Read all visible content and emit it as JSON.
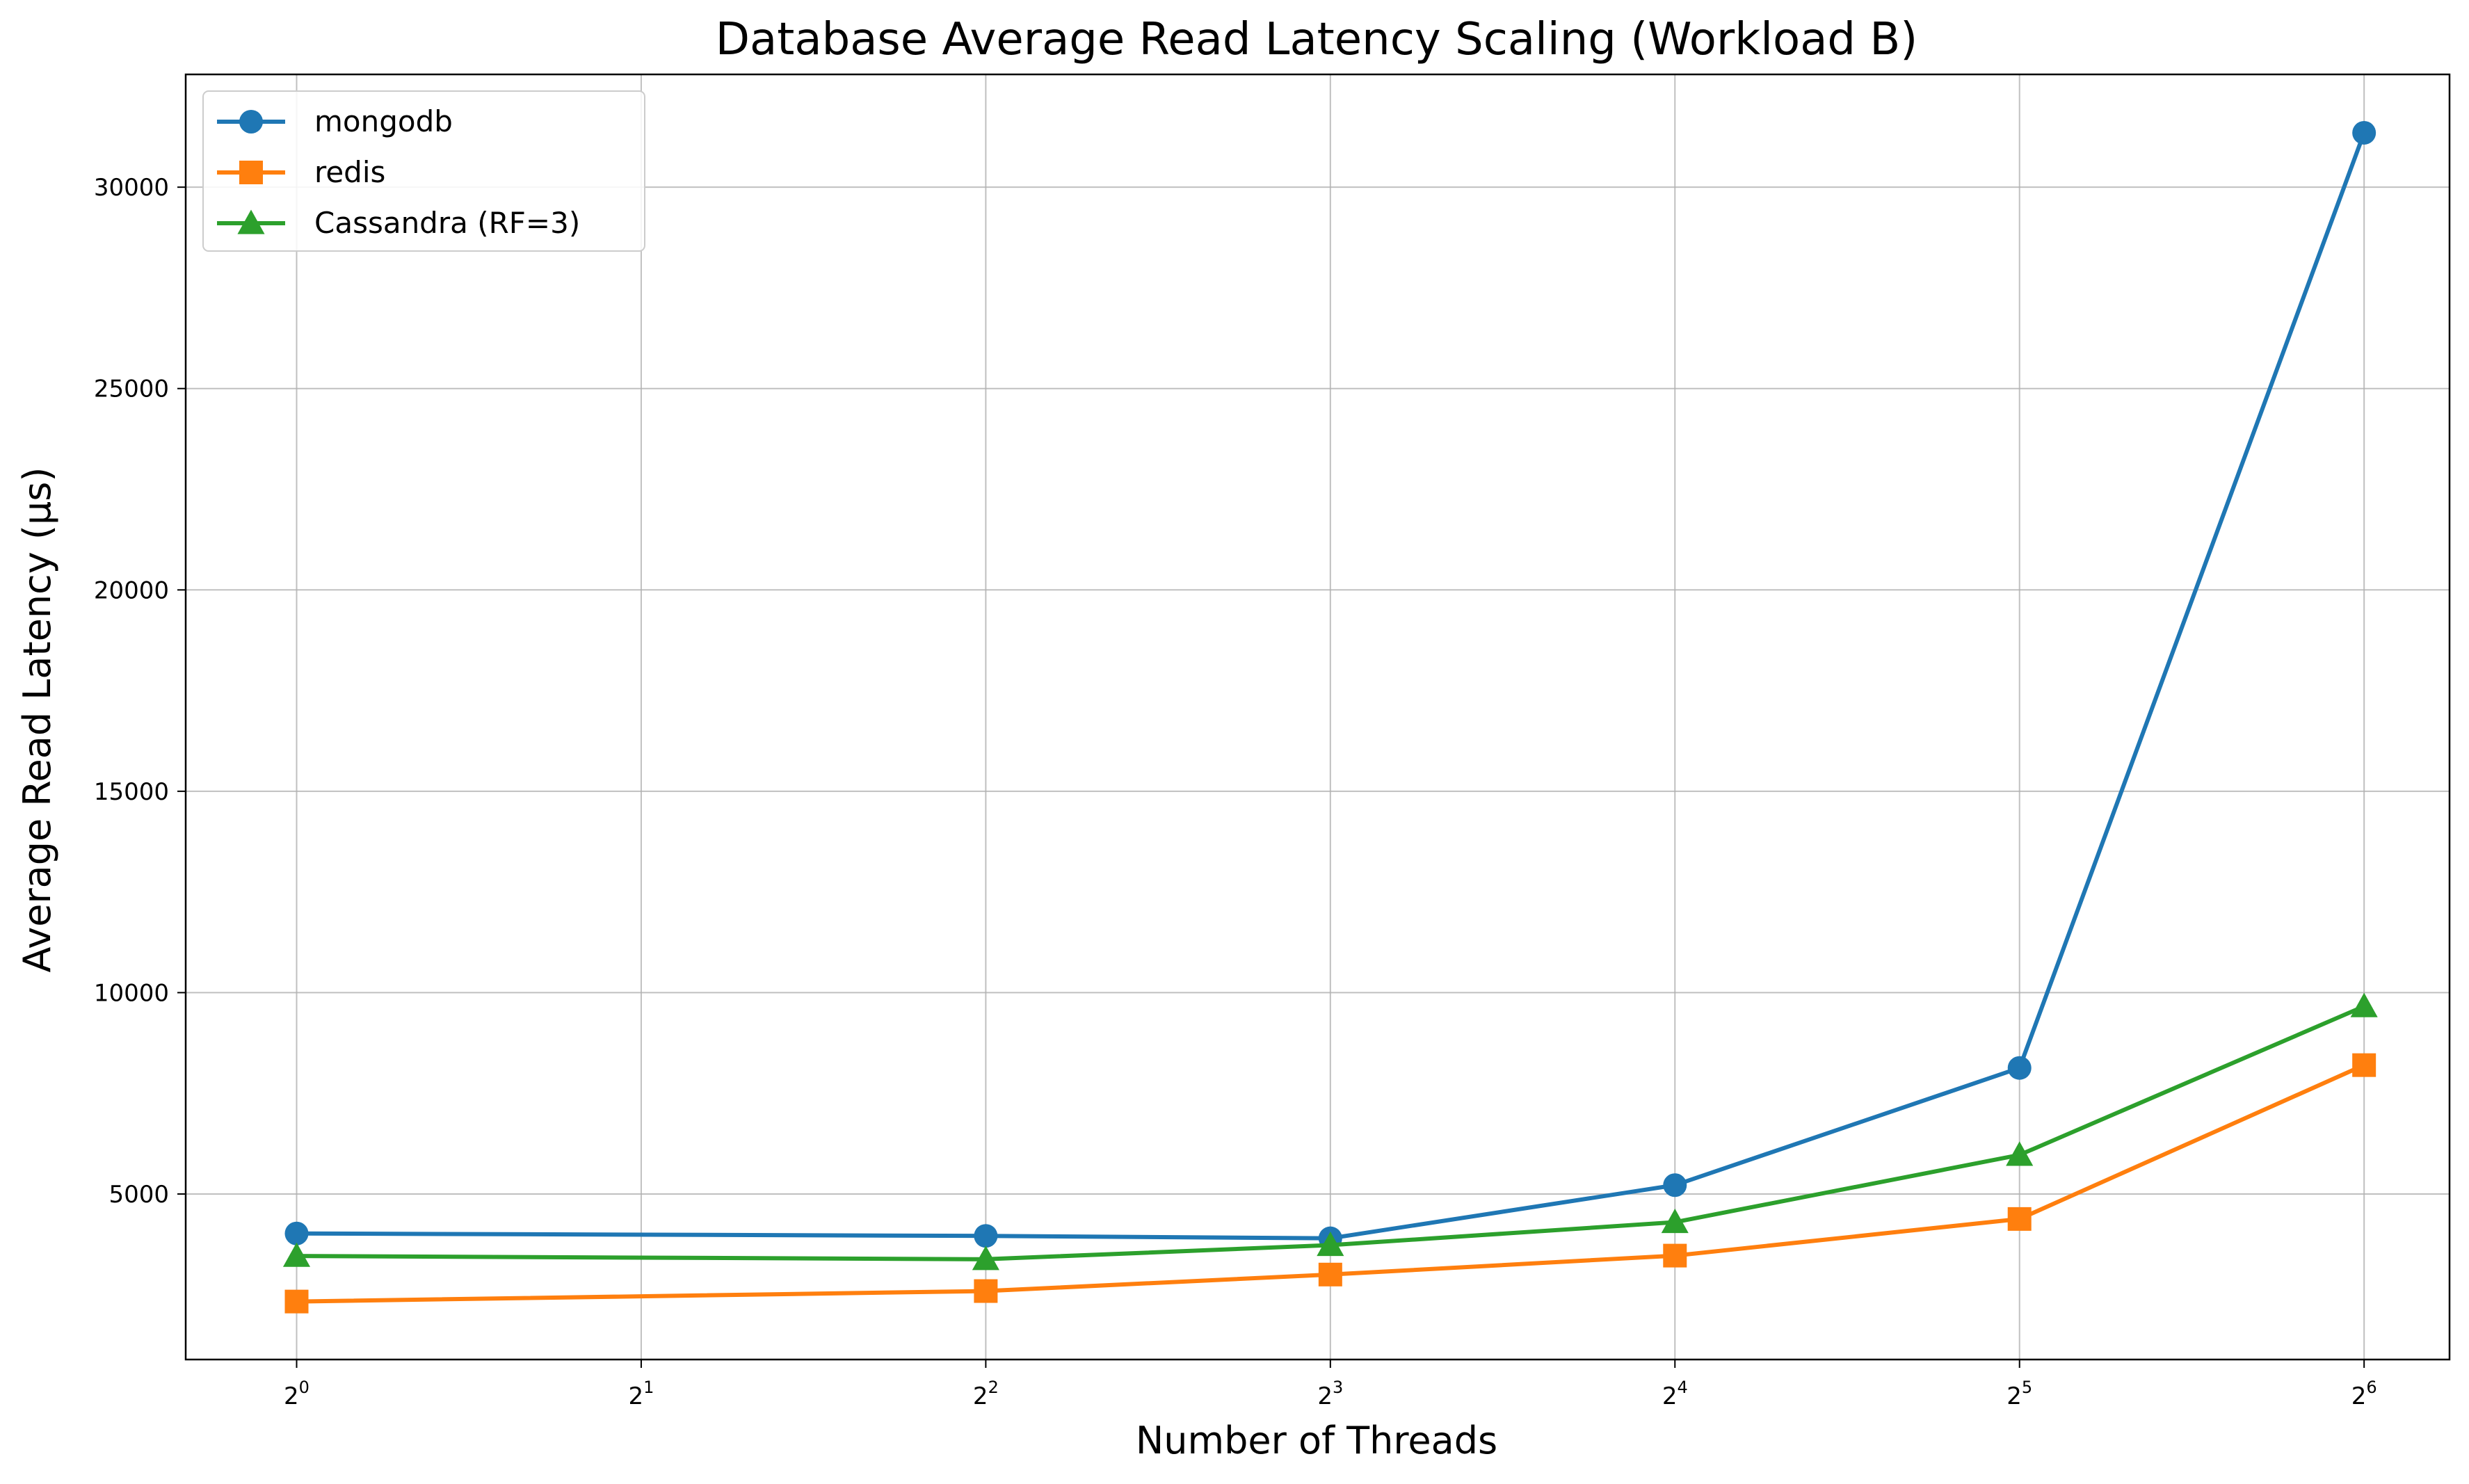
{
  "chart_data": {
    "type": "line",
    "title": "Database Average Read Latency Scaling (Workload B)",
    "xlabel": "Number of Threads",
    "ylabel": "Average Read Latency (μs)",
    "x_scale": "log2",
    "x_ticks": [
      {
        "value": 1,
        "exponent": "0"
      },
      {
        "value": 2,
        "exponent": "1"
      },
      {
        "value": 4,
        "exponent": "2"
      },
      {
        "value": 8,
        "exponent": "3"
      },
      {
        "value": 16,
        "exponent": "4"
      },
      {
        "value": 32,
        "exponent": "5"
      },
      {
        "value": 64,
        "exponent": "6"
      }
    ],
    "x_tick_base": "2",
    "y_ticks": [
      5000,
      10000,
      15000,
      20000,
      25000,
      30000
    ],
    "xlim": [
      0.8,
      76
    ],
    "ylim": [
      890,
      32800
    ],
    "grid": true,
    "legend_position": "upper-left",
    "x": [
      1,
      4,
      8,
      16,
      32,
      64
    ],
    "series": [
      {
        "name": "mongodb",
        "color": "#1f77b4",
        "marker": "circle",
        "values": [
          4020,
          3960,
          3900,
          5220,
          8130,
          31350
        ]
      },
      {
        "name": "redis",
        "color": "#ff7f0e",
        "marker": "square",
        "values": [
          2330,
          2590,
          3000,
          3470,
          4380,
          8200
        ]
      },
      {
        "name": "Cassandra (RF=3)",
        "color": "#2ca02c",
        "marker": "triangle",
        "values": [
          3460,
          3380,
          3730,
          4300,
          5970,
          9660
        ]
      }
    ]
  }
}
